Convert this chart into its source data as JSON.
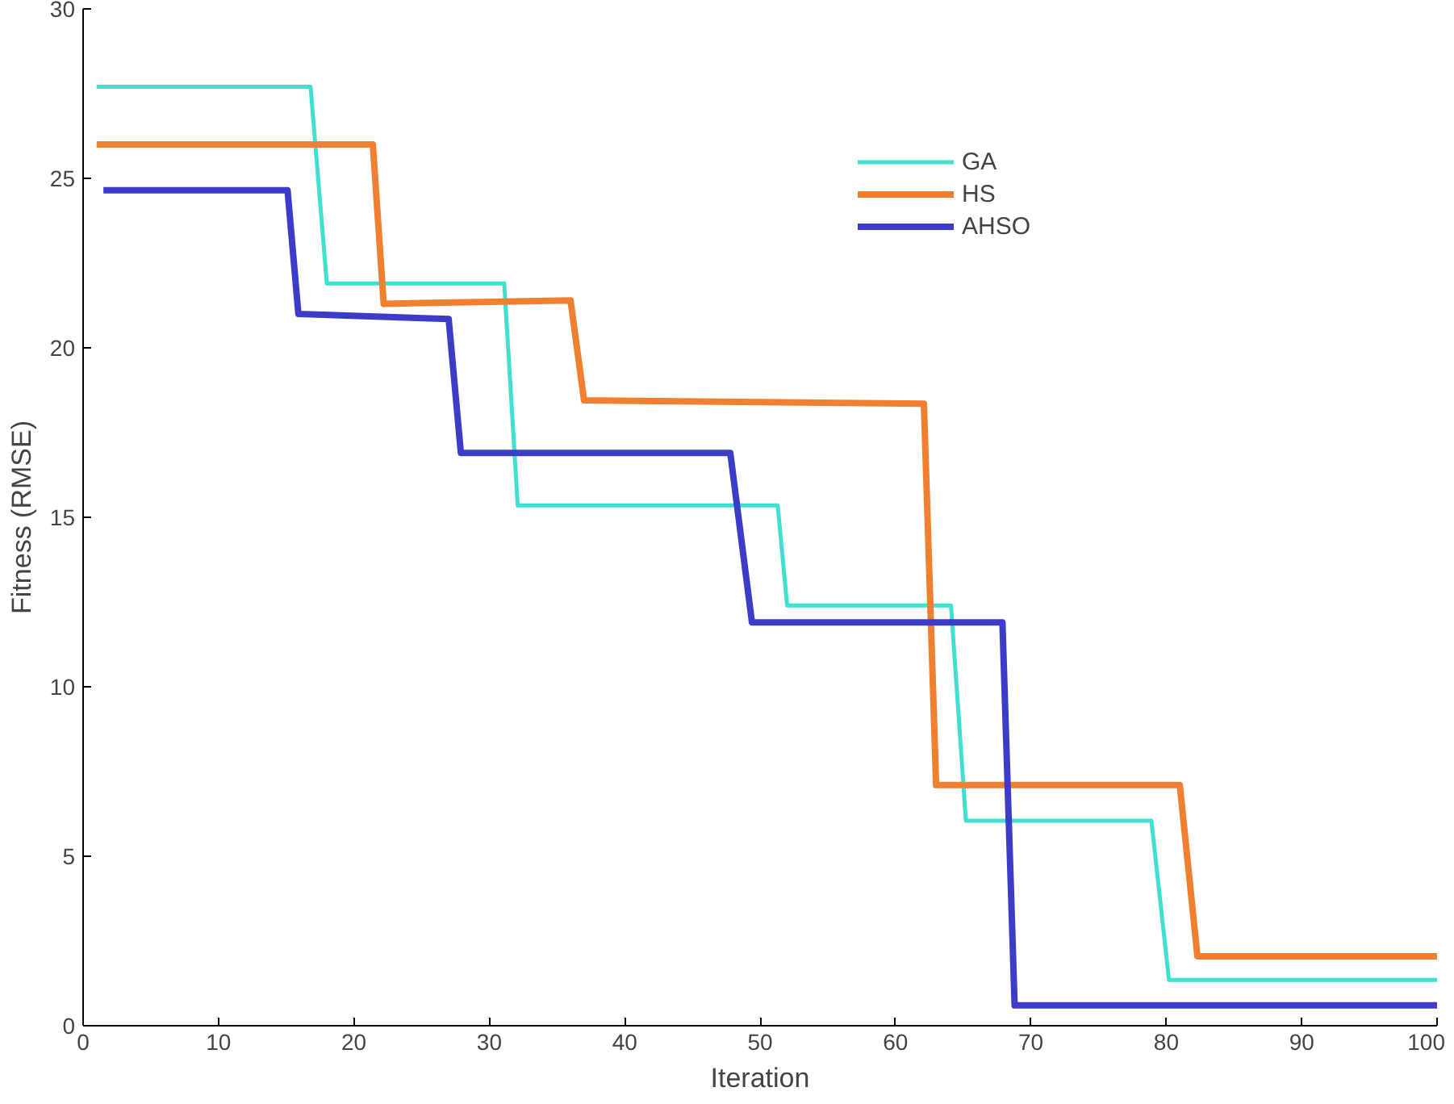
{
  "chart_data": {
    "type": "line",
    "xlabel": "Iteration",
    "ylabel": "Fitness (RMSE)",
    "xlim": [
      0,
      100
    ],
    "ylim": [
      0,
      30
    ],
    "xticks": [
      0,
      10,
      20,
      30,
      40,
      50,
      60,
      70,
      80,
      90,
      100
    ],
    "yticks": [
      0,
      5,
      10,
      15,
      20,
      25,
      30
    ],
    "grid": false,
    "legend": "top right",
    "marker": "none",
    "line_style": "solid",
    "series": [
      {
        "name": "GA",
        "color": "#40e0d0",
        "x": [
          1,
          16.8,
          18,
          31.1,
          32.1,
          51.3,
          52,
          64.1,
          65.2,
          78.9,
          80.2,
          100
        ],
        "values": [
          27.7,
          27.7,
          21.9,
          21.9,
          15.35,
          15.35,
          12.4,
          12.4,
          6.05,
          6.05,
          1.35,
          1.35
        ]
      },
      {
        "name": "HS",
        "color": "#f07f2f",
        "x": [
          1,
          21.4,
          22.2,
          36,
          37,
          62.1,
          63,
          81,
          82.3,
          100
        ],
        "values": [
          26,
          26,
          21.3,
          21.4,
          18.45,
          18.35,
          7.1,
          7.1,
          2.05,
          2.05
        ]
      },
      {
        "name": "AHSO",
        "color": "#3c3cc8",
        "x": [
          1.5,
          15.1,
          15.9,
          27,
          27.9,
          47.8,
          49.4,
          67.9,
          68.8,
          100
        ],
        "values": [
          24.65,
          24.65,
          21,
          20.85,
          16.9,
          16.9,
          11.9,
          11.9,
          0.6,
          0.6
        ]
      }
    ]
  }
}
